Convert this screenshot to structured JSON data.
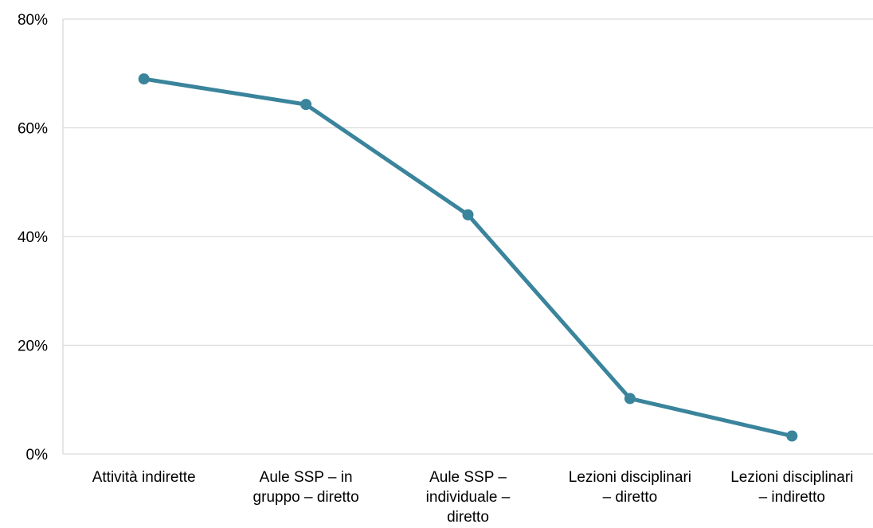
{
  "chart_data": {
    "type": "line",
    "categories": [
      [
        "Attività indirette"
      ],
      [
        "Aule SSP – in",
        "gruppo – diretto"
      ],
      [
        "Aule SSP –",
        "individuale –",
        "diretto"
      ],
      [
        "Lezioni disciplinari",
        "– diretto"
      ],
      [
        "Lezioni disciplinari",
        "– indiretto"
      ]
    ],
    "series": [
      {
        "values": [
          69,
          64.3,
          44,
          10.2,
          3.3
        ]
      }
    ],
    "ylim": [
      0,
      80
    ],
    "yticks": [
      0,
      20,
      40,
      60,
      80
    ],
    "ytick_labels": [
      "0%",
      "20%",
      "40%",
      "60%",
      "80%"
    ],
    "grid": true,
    "legend": "none",
    "colors": {
      "line": "#3a849c",
      "grid": "#d9d9d9"
    }
  }
}
